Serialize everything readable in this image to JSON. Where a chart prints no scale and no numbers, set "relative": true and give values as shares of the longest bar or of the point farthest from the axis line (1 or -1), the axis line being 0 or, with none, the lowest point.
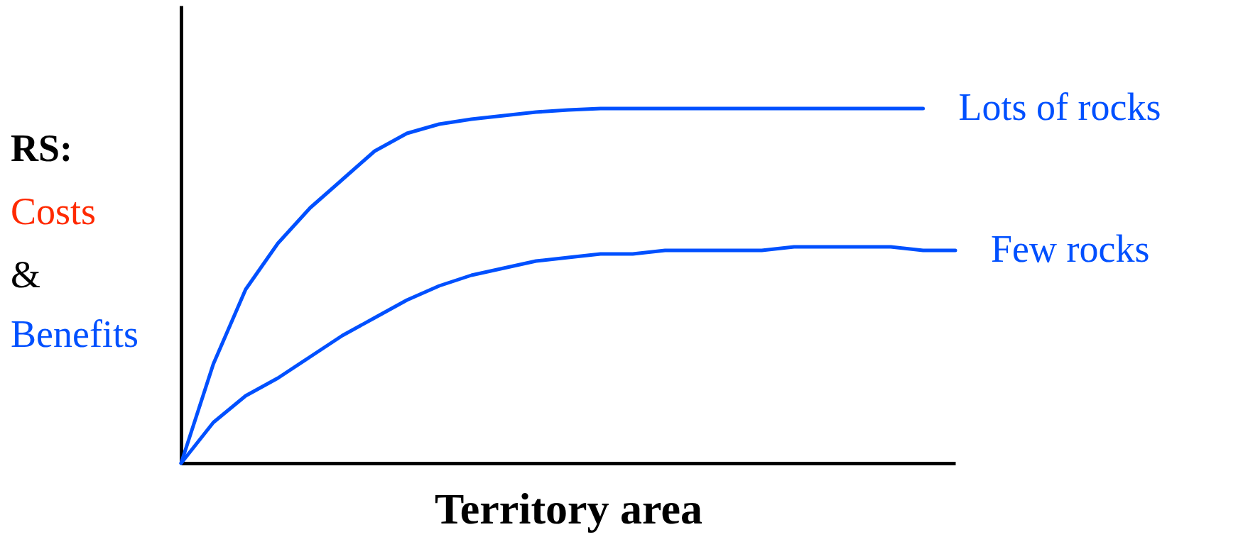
{
  "chart_data": {
    "type": "line",
    "relative": true,
    "xlabel": "Territory area",
    "ylabel": "RS: Costs & Benefits",
    "categories": [
      null,
      null,
      null,
      null,
      null,
      null,
      null,
      null,
      null,
      null,
      null,
      null,
      null,
      null,
      null,
      null,
      null,
      null,
      null,
      null,
      null,
      null,
      null,
      null,
      null
    ],
    "series": [
      {
        "name": "Lots of rocks",
        "color": "#0050ff",
        "values": [
          0,
          0.28,
          0.49,
          0.62,
          0.72,
          0.8,
          0.88,
          0.93,
          0.956,
          0.97,
          0.98,
          0.99,
          0.996,
          1,
          1,
          1,
          1,
          1,
          1,
          1,
          1,
          1,
          1,
          1,
          null
        ]
      },
      {
        "name": "Few rocks",
        "color": "#0050ff",
        "values": [
          0,
          0.115,
          0.19,
          0.24,
          0.3,
          0.36,
          0.41,
          0.46,
          0.5,
          0.53,
          0.55,
          0.57,
          0.58,
          0.59,
          0.59,
          0.6,
          0.6,
          0.6,
          0.6,
          0.61,
          0.61,
          0.61,
          0.61,
          0.6,
          0.6
        ]
      }
    ]
  }
}
